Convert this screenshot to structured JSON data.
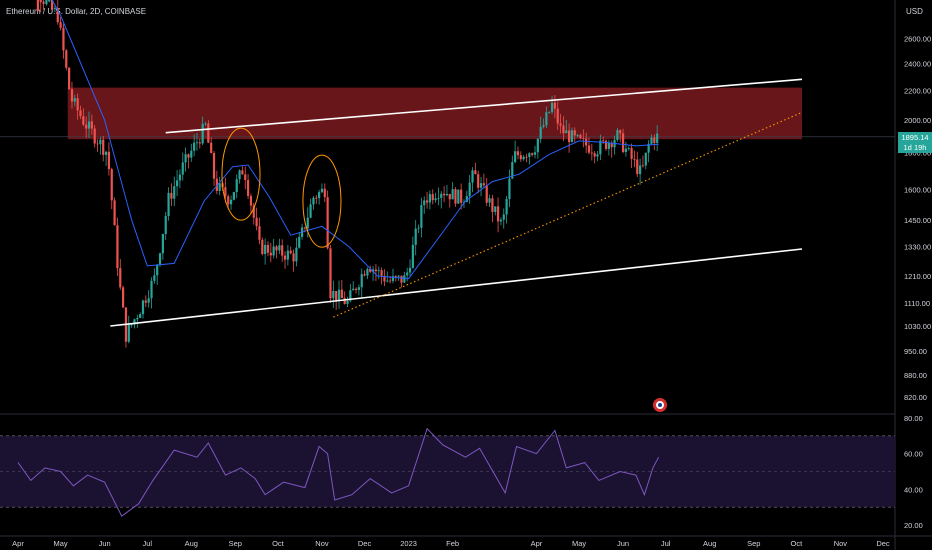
{
  "header": {
    "title": "Ethereum / U.S. Dollar, 2D, COINBASE"
  },
  "price_axis": {
    "unit": "USD",
    "ticks": [
      "2600.00",
      "2400.00",
      "2200.00",
      "2000.00",
      "1800.00",
      "1600.00",
      "1450.00",
      "1330.00",
      "1210.00",
      "1110.00",
      "1030.00",
      "950.00",
      "880.00",
      "820.00"
    ]
  },
  "rsi_axis": {
    "ticks": [
      "80.00",
      "60.00",
      "40.00",
      "20.00"
    ]
  },
  "time_axis": {
    "ticks": [
      "Apr",
      "May",
      "Jun",
      "Jul",
      "Aug",
      "Sep",
      "Oct",
      "Nov",
      "Dec",
      "2023",
      "Feb",
      "Apr",
      "May",
      "Jun",
      "Jul",
      "Aug",
      "Sep",
      "Oct",
      "Nov",
      "Dec"
    ]
  },
  "last_price": {
    "value": "1895.14",
    "countdown": "1d 19h"
  },
  "colors": {
    "up": "#26a69a",
    "down": "#ef5350",
    "resistance_zone": "#7a1a1f",
    "ma_line": "#2962ff",
    "rsi_line": "#7e57c2",
    "trendline": "#ffffff",
    "support_dotted": "#ff9800",
    "highlight_ellipse": "#ff9800",
    "price_tag": "#26a69a"
  },
  "chart_data": [
    {
      "type": "candlestick",
      "title": "Ethereum / U.S. Dollar, 2D, COINBASE",
      "scale": "log",
      "ylim": [
        800,
        2800
      ],
      "x_range": [
        "2022-04-01",
        "2023-12-31"
      ],
      "closes": [
        {
          "date": "2022-04-01",
          "close": 3450
        },
        {
          "date": "2022-04-15",
          "close": 3050
        },
        {
          "date": "2022-05-01",
          "close": 2800
        },
        {
          "date": "2022-05-10",
          "close": 2150
        },
        {
          "date": "2022-05-20",
          "close": 1980
        },
        {
          "date": "2022-06-05",
          "close": 1800
        },
        {
          "date": "2022-06-13",
          "close": 1200
        },
        {
          "date": "2022-06-18",
          "close": 1000
        },
        {
          "date": "2022-06-28",
          "close": 1090
        },
        {
          "date": "2022-07-08",
          "close": 1200
        },
        {
          "date": "2022-07-18",
          "close": 1550
        },
        {
          "date": "2022-07-28",
          "close": 1720
        },
        {
          "date": "2022-08-13",
          "close": 1960
        },
        {
          "date": "2022-08-20",
          "close": 1620
        },
        {
          "date": "2022-08-30",
          "close": 1550
        },
        {
          "date": "2022-09-09",
          "close": 1720
        },
        {
          "date": "2022-09-20",
          "close": 1330
        },
        {
          "date": "2022-10-01",
          "close": 1310
        },
        {
          "date": "2022-10-15",
          "close": 1290
        },
        {
          "date": "2022-10-28",
          "close": 1560
        },
        {
          "date": "2022-11-05",
          "close": 1600
        },
        {
          "date": "2022-11-09",
          "close": 1150
        },
        {
          "date": "2022-11-21",
          "close": 1110
        },
        {
          "date": "2022-12-05",
          "close": 1260
        },
        {
          "date": "2022-12-20",
          "close": 1190
        },
        {
          "date": "2023-01-01",
          "close": 1200
        },
        {
          "date": "2023-01-14",
          "close": 1550
        },
        {
          "date": "2023-01-25",
          "close": 1600
        },
        {
          "date": "2023-02-10",
          "close": 1550
        },
        {
          "date": "2023-02-18",
          "close": 1680
        },
        {
          "date": "2023-03-10",
          "close": 1420
        },
        {
          "date": "2023-03-18",
          "close": 1780
        },
        {
          "date": "2023-04-01",
          "close": 1820
        },
        {
          "date": "2023-04-14",
          "close": 2100
        },
        {
          "date": "2023-04-20",
          "close": 1940
        },
        {
          "date": "2023-05-01",
          "close": 1870
        },
        {
          "date": "2023-05-15",
          "close": 1820
        },
        {
          "date": "2023-05-30",
          "close": 1900
        },
        {
          "date": "2023-06-10",
          "close": 1750
        },
        {
          "date": "2023-06-16",
          "close": 1680
        },
        {
          "date": "2023-06-22",
          "close": 1880
        },
        {
          "date": "2023-06-26",
          "close": 1895.14
        }
      ],
      "moving_average": [
        {
          "date": "2022-04-01",
          "value": 3600
        },
        {
          "date": "2022-05-01",
          "value": 2800
        },
        {
          "date": "2022-06-01",
          "value": 2000
        },
        {
          "date": "2022-06-20",
          "value": 1450
        },
        {
          "date": "2022-07-01",
          "value": 1250
        },
        {
          "date": "2022-07-20",
          "value": 1260
        },
        {
          "date": "2022-08-10",
          "value": 1540
        },
        {
          "date": "2022-08-30",
          "value": 1720
        },
        {
          "date": "2022-09-10",
          "value": 1730
        },
        {
          "date": "2022-09-25",
          "value": 1560
        },
        {
          "date": "2022-10-10",
          "value": 1380
        },
        {
          "date": "2022-11-01",
          "value": 1420
        },
        {
          "date": "2022-11-20",
          "value": 1330
        },
        {
          "date": "2022-12-10",
          "value": 1210
        },
        {
          "date": "2023-01-01",
          "value": 1200
        },
        {
          "date": "2023-01-20",
          "value": 1350
        },
        {
          "date": "2023-02-10",
          "value": 1540
        },
        {
          "date": "2023-03-01",
          "value": 1640
        },
        {
          "date": "2023-03-20",
          "value": 1680
        },
        {
          "date": "2023-04-10",
          "value": 1790
        },
        {
          "date": "2023-05-01",
          "value": 1870
        },
        {
          "date": "2023-05-20",
          "value": 1860
        },
        {
          "date": "2023-06-10",
          "value": 1840
        },
        {
          "date": "2023-06-26",
          "value": 1850
        }
      ],
      "annotations": {
        "resistance_zone": {
          "from": "2022-05-06",
          "to": "2023-10-05",
          "low": 1880,
          "high": 2220
        },
        "upper_trendline": {
          "from": {
            "date": "2022-07-14",
            "price": 1920
          },
          "to": {
            "date": "2023-10-05",
            "price": 2280
          }
        },
        "lower_trendline": {
          "from": {
            "date": "2022-06-05",
            "price": 1030
          },
          "to": {
            "date": "2023-10-05",
            "price": 1320
          }
        },
        "dotted_support": {
          "from": {
            "date": "2022-11-09",
            "price": 1060
          },
          "to": {
            "date": "2023-10-05",
            "price": 2050
          }
        },
        "ellipses": [
          {
            "center": {
              "date": "2022-09-05",
              "price": 1680
            },
            "label": ""
          },
          {
            "center": {
              "date": "2022-11-01",
              "price": 1540
            },
            "label": ""
          }
        ]
      }
    },
    {
      "type": "line",
      "title": "",
      "ylim": [
        20,
        80
      ],
      "bands": [
        30,
        70
      ],
      "series": [
        {
          "values": [
            {
              "date": "2022-04-01",
              "v": 55
            },
            {
              "date": "2022-04-10",
              "v": 45
            },
            {
              "date": "2022-04-20",
              "v": 52
            },
            {
              "date": "2022-05-01",
              "v": 50
            },
            {
              "date": "2022-05-10",
              "v": 42
            },
            {
              "date": "2022-05-20",
              "v": 48
            },
            {
              "date": "2022-06-01",
              "v": 44
            },
            {
              "date": "2022-06-13",
              "v": 25
            },
            {
              "date": "2022-06-25",
              "v": 32
            },
            {
              "date": "2022-07-05",
              "v": 45
            },
            {
              "date": "2022-07-20",
              "v": 62
            },
            {
              "date": "2022-08-05",
              "v": 58
            },
            {
              "date": "2022-08-13",
              "v": 66
            },
            {
              "date": "2022-08-25",
              "v": 48
            },
            {
              "date": "2022-09-05",
              "v": 52
            },
            {
              "date": "2022-09-15",
              "v": 46
            },
            {
              "date": "2022-09-22",
              "v": 37
            },
            {
              "date": "2022-10-05",
              "v": 44
            },
            {
              "date": "2022-10-20",
              "v": 41
            },
            {
              "date": "2022-10-30",
              "v": 64
            },
            {
              "date": "2022-11-05",
              "v": 60
            },
            {
              "date": "2022-11-10",
              "v": 34
            },
            {
              "date": "2022-11-22",
              "v": 37
            },
            {
              "date": "2022-12-05",
              "v": 46
            },
            {
              "date": "2022-12-20",
              "v": 38
            },
            {
              "date": "2023-01-01",
              "v": 42
            },
            {
              "date": "2023-01-14",
              "v": 74
            },
            {
              "date": "2023-01-25",
              "v": 65
            },
            {
              "date": "2023-02-10",
              "v": 58
            },
            {
              "date": "2023-02-20",
              "v": 63
            },
            {
              "date": "2023-03-10",
              "v": 38
            },
            {
              "date": "2023-03-18",
              "v": 64
            },
            {
              "date": "2023-04-01",
              "v": 60
            },
            {
              "date": "2023-04-14",
              "v": 73
            },
            {
              "date": "2023-04-22",
              "v": 52
            },
            {
              "date": "2023-05-05",
              "v": 55
            },
            {
              "date": "2023-05-15",
              "v": 45
            },
            {
              "date": "2023-05-30",
              "v": 50
            },
            {
              "date": "2023-06-10",
              "v": 48
            },
            {
              "date": "2023-06-16",
              "v": 37
            },
            {
              "date": "2023-06-22",
              "v": 52
            },
            {
              "date": "2023-06-26",
              "v": 58
            }
          ]
        }
      ]
    }
  ]
}
